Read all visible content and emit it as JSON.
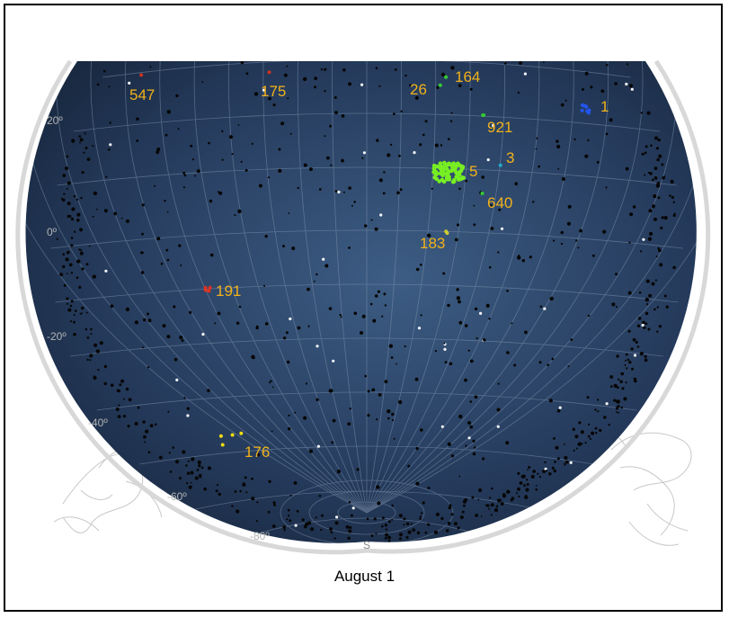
{
  "caption": "August 1",
  "direction_label": "S",
  "declination_labels": [
    "20º",
    "0º",
    "-20º",
    "-40º",
    "-60º",
    "-80º"
  ],
  "clusters": [
    {
      "label": "547",
      "color": "#cc3322"
    },
    {
      "label": "175",
      "color": "#cc3322"
    },
    {
      "label": "26",
      "color": "#33cc33"
    },
    {
      "label": "164",
      "color": "#33cc33"
    },
    {
      "label": "1",
      "color": "#2255ee"
    },
    {
      "label": "921",
      "color": "#33cc33"
    },
    {
      "label": "3",
      "color": "#22aacc"
    },
    {
      "label": "5",
      "color": "#77ee22"
    },
    {
      "label": "640",
      "color": "#33cc33"
    },
    {
      "label": "183",
      "color": "#cccc33"
    },
    {
      "label": "191",
      "color": "#dd3322"
    },
    {
      "label": "176",
      "color": "#eedd11"
    }
  ],
  "colors": {
    "sky_dark": "#1a2c47",
    "sky_light": "#3a5a80",
    "label": "#f2b21a",
    "grid": "#7f93ad",
    "horizon_ring": "#d8d8d8"
  }
}
